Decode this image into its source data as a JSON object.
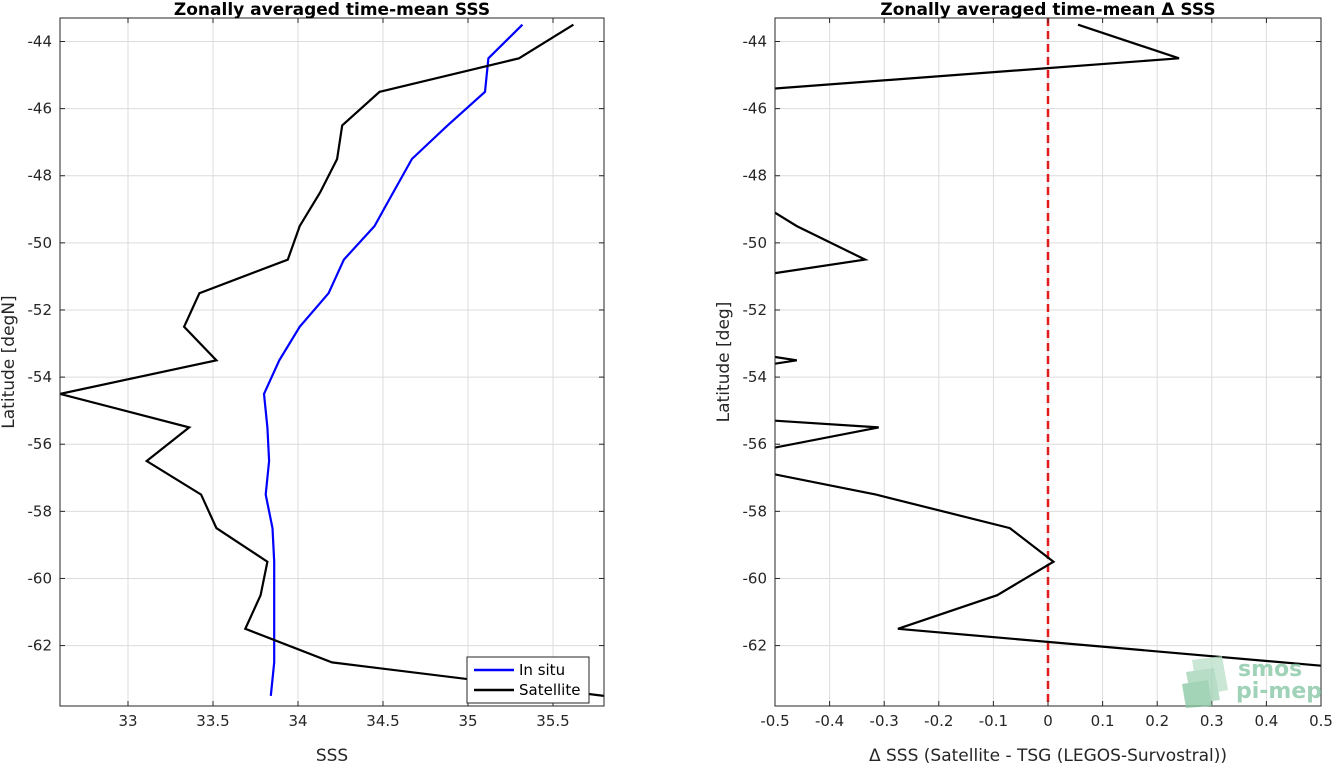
{
  "colors": {
    "in_situ": "#0000ff",
    "satellite": "#000000",
    "zero_line": "#e31a1c",
    "grid": "#dcdcdc",
    "watermark": "#7fc3a0"
  },
  "watermark": {
    "line1": "smos",
    "line2": "pi-mep"
  },
  "chart_data": [
    {
      "type": "line",
      "title": "Zonally averaged time-mean SSS",
      "xlabel": "SSS",
      "ylabel": "Latitude [degN]",
      "xlim": [
        32.6,
        35.8
      ],
      "ylim": [
        -63.8,
        -43.3
      ],
      "xticks": [
        33,
        33.5,
        34,
        34.5,
        35,
        35.5
      ],
      "xtick_labels": [
        "33",
        "33.5",
        "34",
        "34.5",
        "35",
        "35.5"
      ],
      "yticks": [
        -62,
        -60,
        -58,
        -56,
        -54,
        -52,
        -50,
        -48,
        -46,
        -44
      ],
      "ytick_labels": [
        "-62",
        "-60",
        "-58",
        "-56",
        "-54",
        "-52",
        "-50",
        "-48",
        "-46",
        "-44"
      ],
      "grid": true,
      "legend_position": "bottom-right",
      "series": [
        {
          "name": "In situ",
          "color": "#0000ff",
          "y": [
            -43.5,
            -44.5,
            -45.5,
            -46.5,
            -47.5,
            -48.5,
            -49.5,
            -50.5,
            -51.5,
            -52.5,
            -53.5,
            -54.5,
            -55.5,
            -56.5,
            -57.5,
            -58.5,
            -59.5,
            -60.5,
            -61.5,
            -62.5,
            -63.5
          ],
          "x": [
            35.32,
            35.12,
            35.1,
            34.88,
            34.67,
            34.56,
            34.45,
            34.27,
            34.18,
            34.01,
            33.89,
            33.8,
            33.82,
            33.83,
            33.81,
            33.85,
            33.86,
            33.86,
            33.86,
            33.86,
            33.84
          ]
        },
        {
          "name": "Satellite",
          "color": "#000000",
          "y": [
            -43.5,
            -44.5,
            -45.5,
            -46.5,
            -47.5,
            -48.5,
            -49.5,
            -50.5,
            -51.5,
            -52.5,
            -53.5,
            -54.5,
            -55.5,
            -56.5,
            -57.5,
            -58.5,
            -59.5,
            -60.5,
            -61.5,
            -62.5,
            -63.5
          ],
          "x": [
            35.62,
            35.3,
            34.48,
            34.26,
            34.23,
            34.13,
            34.01,
            33.94,
            33.42,
            33.33,
            33.52,
            32.6,
            33.36,
            33.11,
            33.43,
            33.52,
            33.82,
            33.78,
            33.69,
            34.2,
            35.8
          ]
        }
      ]
    },
    {
      "type": "line",
      "title": "Zonally averaged time-mean Δ SSS",
      "xlabel": "Δ SSS (Satellite - TSG (LEGOS-Survostral))",
      "ylabel": "Latitude [deg]",
      "xlim": [
        -0.5,
        0.5
      ],
      "ylim": [
        -63.8,
        -43.3
      ],
      "xticks": [
        -0.5,
        -0.4,
        -0.3,
        -0.2,
        -0.1,
        0,
        0.1,
        0.2,
        0.3,
        0.4,
        0.5
      ],
      "xtick_labels": [
        "-0.5",
        "-0.4",
        "-0.3",
        "-0.2",
        "-0.1",
        "0",
        "0.1",
        "0.2",
        "0.3",
        "0.4",
        "0.5"
      ],
      "yticks": [
        -62,
        -60,
        -58,
        -56,
        -54,
        -52,
        -50,
        -48,
        -46,
        -44
      ],
      "ytick_labels": [
        "-62",
        "-60",
        "-58",
        "-56",
        "-54",
        "-52",
        "-50",
        "-48",
        "-46",
        "-44"
      ],
      "grid": true,
      "reference_line": {
        "x": 0,
        "style": "dashed",
        "color": "#e31a1c"
      },
      "series": [
        {
          "color": "#000000",
          "segments": [
            {
              "y": [
                -43.5,
                -44.5,
                -45.4
              ],
              "x": [
                0.055,
                0.24,
                -0.5
              ]
            },
            {
              "y": [
                -49.1,
                -49.5,
                -50.5,
                -50.9
              ],
              "x": [
                -0.5,
                -0.46,
                -0.335,
                -0.5
              ]
            },
            {
              "y": [
                -53.4,
                -53.5,
                -53.6
              ],
              "x": [
                -0.5,
                -0.46,
                -0.5
              ]
            },
            {
              "y": [
                -55.3,
                -55.5,
                -56.1
              ],
              "x": [
                -0.5,
                -0.31,
                -0.5
              ]
            },
            {
              "y": [
                -56.9,
                -57.5,
                -58.5,
                -59.5,
                -60.5,
                -61.5,
                -62.6
              ],
              "x": [
                -0.5,
                -0.315,
                -0.07,
                0.01,
                -0.093,
                -0.275,
                0.5
              ]
            }
          ]
        }
      ]
    }
  ]
}
